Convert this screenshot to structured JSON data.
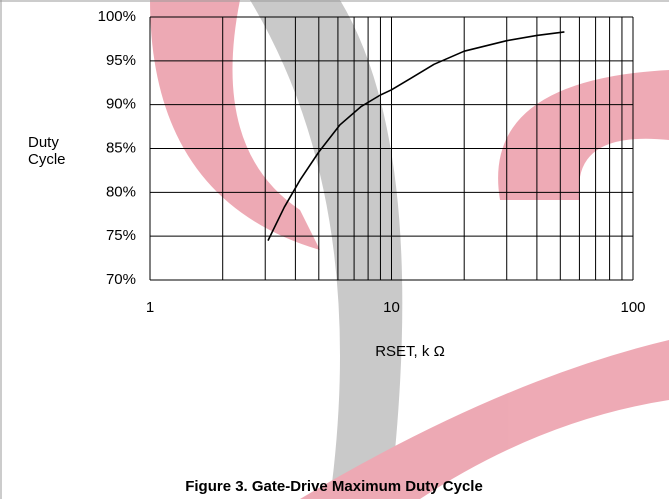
{
  "chart_data": {
    "type": "line",
    "title": "Figure 3. Gate-Drive Maximum Duty Cycle",
    "x_label": "RSET, k Ω",
    "y_label": "Duty Cycle",
    "x": [
      3.08,
      3.6,
      4.18,
      5,
      6.12,
      7.5,
      9,
      10,
      12,
      15,
      20,
      30,
      40,
      52
    ],
    "values": [
      74.5,
      78.3,
      81.4,
      84.6,
      87.7,
      89.8,
      91.1,
      91.7,
      93,
      94.6,
      96.1,
      97.3,
      97.9,
      98.3
    ],
    "color": "#000000",
    "xlim": [
      1,
      100
    ],
    "xticks": [
      1,
      10,
      100
    ],
    "xscale": "log",
    "ylim": [
      70,
      100
    ],
    "yticks": [
      {
        "value": 70,
        "label": "70%"
      },
      {
        "value": 75,
        "label": "75%"
      },
      {
        "value": 80,
        "label": "80%"
      },
      {
        "value": 85,
        "label": "85%"
      },
      {
        "value": 90,
        "label": "90%"
      },
      {
        "value": 95,
        "label": "95%"
      },
      {
        "value": 100,
        "label": "100%"
      }
    ],
    "grid": true,
    "minor_grid": true
  }
}
